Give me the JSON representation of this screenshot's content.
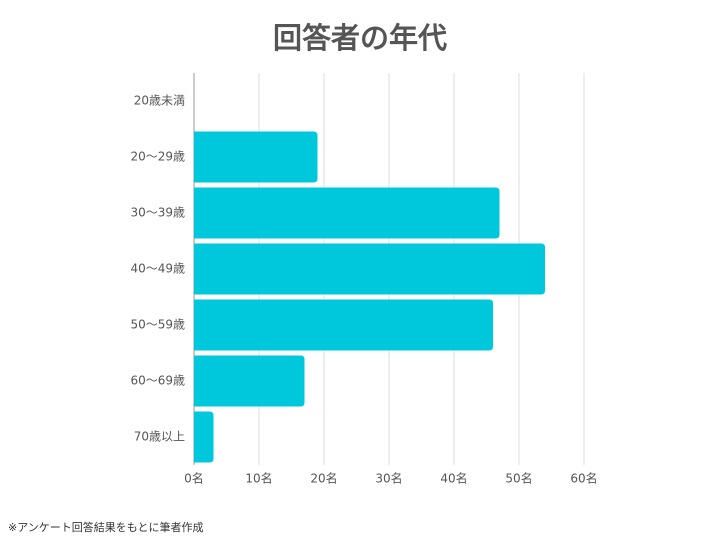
{
  "chart_data": {
    "type": "barh",
    "title": "回答者の年代",
    "categories": [
      "20歳未満",
      "20〜29歳",
      "30〜39歳",
      "40〜49歳",
      "50〜59歳",
      "60〜69歳",
      "70歳以上"
    ],
    "values": [
      0,
      19,
      47,
      54,
      46,
      17,
      3
    ],
    "color": "#00c8dc",
    "xlim": [
      0,
      60
    ],
    "xticks": [
      {
        "value": 0,
        "label": "0名"
      },
      {
        "value": 10,
        "label": "10名"
      },
      {
        "value": 20,
        "label": "20名"
      },
      {
        "value": 30,
        "label": "30名"
      },
      {
        "value": 40,
        "label": "40名"
      },
      {
        "value": 50,
        "label": "50名"
      },
      {
        "value": 60,
        "label": "60名"
      }
    ],
    "grid": true,
    "footnote": "※アンケート回答結果をもとに筆者作成"
  }
}
